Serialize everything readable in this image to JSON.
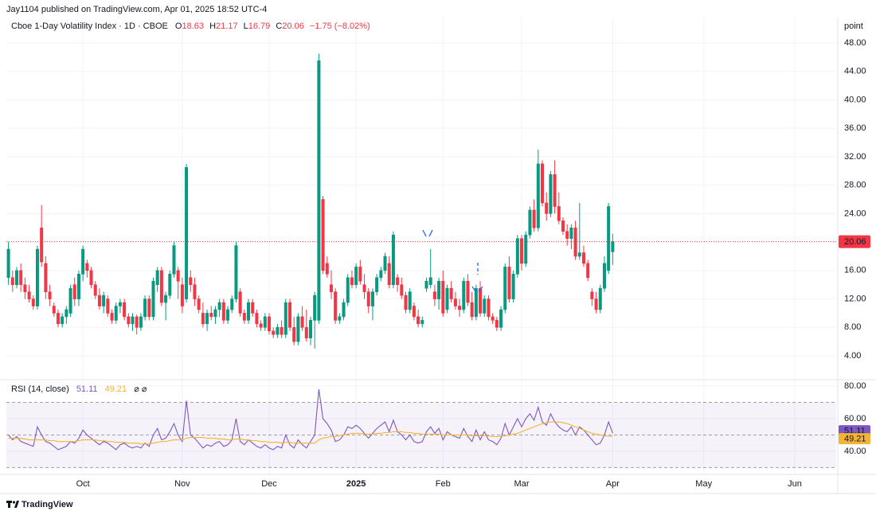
{
  "header": {
    "publisher": "Jay1104 published on TradingView.com, Apr 01, 2025 18:52 UTC-4",
    "footer": "TradingView"
  },
  "chart_data": [
    {
      "type": "candlestick",
      "title": "Cboe 1-Day Volatility Index · 1D · CBOE",
      "ohlc_labels": [
        "O",
        "H",
        "L",
        "C"
      ],
      "change": "−1.75 (−8.02%)",
      "header_color": "#f23645",
      "axis_unit": "point",
      "up_color": "#089981",
      "down_color": "#f23645",
      "grid": true,
      "last_price_line": true,
      "open": [
        15,
        15,
        14,
        16,
        14,
        13,
        12,
        11,
        22,
        17,
        13,
        11,
        10,
        8.5,
        9.5,
        10,
        14,
        12,
        15.5,
        17,
        16,
        14,
        12.5,
        11,
        12,
        10,
        9,
        11,
        11.5,
        9.5,
        8.5,
        9.5,
        8,
        9.5,
        12,
        9.5,
        14,
        16,
        11.5,
        12.5,
        15.5,
        16,
        14,
        12,
        15,
        14,
        12,
        10,
        8.5,
        10,
        9.5,
        10.5,
        11.5,
        9,
        10.5,
        12,
        13,
        10,
        9,
        11.5,
        10,
        8.5,
        8,
        9.5,
        7.5,
        7,
        8,
        7,
        11.5,
        8,
        6,
        9.5,
        8,
        6.5,
        9,
        9,
        26,
        17,
        14,
        13,
        9,
        9.5,
        11.5,
        15,
        14,
        16.5,
        14,
        13,
        11,
        13,
        15,
        16,
        17,
        14,
        15,
        14,
        12.5,
        10.5,
        11,
        9.5,
        8.5,
        13.5,
        14,
        13,
        12,
        14.5,
        10.5,
        13.5,
        12,
        11,
        10.5,
        14.5,
        11.5,
        9.5,
        13.5,
        10,
        12,
        9.5,
        9,
        8,
        10.5,
        16.5,
        12,
        15.5,
        20.5,
        17,
        21,
        24.5,
        22,
        31,
        25.5,
        24,
        29.5,
        25,
        23,
        21.5,
        20.5,
        22,
        18,
        18.5,
        17,
        13,
        12,
        10.5,
        13.5,
        16,
        18.63
      ],
      "high": [
        20,
        16,
        16.5,
        17,
        15,
        14,
        12.5,
        19.5,
        25.2,
        18,
        14,
        11.5,
        10.5,
        10,
        11,
        14,
        15,
        16,
        19.5,
        17.5,
        16.5,
        14.5,
        13.5,
        13,
        12.5,
        10.5,
        11.5,
        12,
        12,
        10,
        10,
        9.8,
        10,
        12.5,
        12.5,
        15,
        16.5,
        16.5,
        13,
        16,
        20,
        16.5,
        15,
        31,
        16,
        15,
        12.5,
        11.5,
        10.5,
        11,
        11,
        12,
        12,
        11,
        12.5,
        20,
        13.5,
        10.5,
        12,
        12,
        10.5,
        9,
        10,
        10,
        8,
        8.5,
        9,
        12,
        12,
        9.5,
        10,
        11,
        10.5,
        9.5,
        13,
        46.5,
        26.5,
        18,
        16,
        13.5,
        10,
        12,
        15.5,
        16,
        17,
        17.5,
        15.5,
        13.5,
        13.5,
        15.5,
        16.5,
        18.5,
        18,
        21.5,
        15.5,
        15,
        13,
        13.5,
        11.5,
        10.5,
        9.5,
        15,
        19,
        14,
        15,
        16,
        14,
        14.5,
        13,
        12,
        15,
        15.5,
        13,
        14,
        14.5,
        12.5,
        12.5,
        10,
        9.5,
        11,
        17,
        18,
        16,
        21,
        21,
        21.5,
        25,
        26,
        33,
        31.5,
        27,
        30,
        31.5,
        27,
        23.5,
        22.5,
        22.5,
        23,
        25.5,
        19.5,
        17.5,
        13.5,
        13,
        14,
        18,
        25.5,
        21.17
      ],
      "low": [
        14,
        13,
        13.5,
        13,
        12,
        11.5,
        10.5,
        10.5,
        16.5,
        12,
        11,
        9.5,
        8,
        8,
        8.5,
        9.5,
        11,
        11,
        14.5,
        15,
        13.5,
        12,
        10.5,
        10,
        9.5,
        8.5,
        8.5,
        10,
        9,
        8,
        7.5,
        7,
        7.5,
        9,
        9,
        9,
        13,
        11,
        9,
        12,
        15,
        12,
        10,
        11.5,
        13,
        11,
        10,
        8,
        7.5,
        9,
        8.5,
        9.5,
        8.5,
        8.5,
        10,
        11.5,
        9.5,
        8.5,
        8.5,
        9.5,
        8,
        7.5,
        7.5,
        7,
        6.5,
        6.5,
        6.5,
        6.5,
        7.5,
        5.5,
        5.5,
        7.5,
        6,
        5.5,
        5,
        8.5,
        15.5,
        15,
        12,
        8.5,
        8.5,
        9,
        11,
        13.5,
        13.5,
        14,
        12,
        10,
        9,
        12.5,
        14.5,
        15.5,
        13.5,
        13.5,
        13,
        12,
        10,
        10,
        9,
        8,
        8,
        13,
        13.5,
        11,
        10.5,
        9.5,
        10,
        11.5,
        10.5,
        9.5,
        10,
        11,
        9,
        9,
        9.5,
        9.5,
        9,
        8.5,
        7.5,
        7.5,
        10,
        11.5,
        11.5,
        15,
        16,
        16.5,
        20.5,
        21.5,
        21.5,
        25,
        23,
        23.5,
        24,
        22.5,
        21,
        19.5,
        19,
        17.5,
        17.5,
        16.5,
        14.5,
        11,
        10,
        10,
        13,
        15.5,
        16.79
      ],
      "close": [
        19,
        14,
        16,
        14,
        13,
        12,
        11,
        19,
        17.2,
        13,
        12,
        10,
        8.5,
        9.5,
        10.5,
        13.5,
        12,
        15.5,
        19,
        16,
        14,
        12.5,
        11,
        12.5,
        10,
        9,
        11,
        11.5,
        9.5,
        8.5,
        9.5,
        8,
        9.5,
        12,
        9.5,
        14.5,
        16,
        11.5,
        12.5,
        15.5,
        19.5,
        14.5,
        11,
        30.5,
        14,
        12,
        10.5,
        8.5,
        10,
        9.5,
        10.5,
        11.5,
        9,
        10.5,
        12,
        19.5,
        10,
        9,
        11.5,
        10,
        8.5,
        8,
        9.5,
        7.5,
        7,
        8,
        7,
        11.5,
        8,
        6,
        9.5,
        8,
        6.5,
        9,
        12.5,
        45.5,
        16,
        15.5,
        13,
        9,
        9.5,
        11.5,
        15,
        14,
        16.5,
        14.5,
        13,
        11,
        13,
        15,
        16,
        18,
        14,
        21,
        14,
        12.5,
        10.5,
        13,
        9.5,
        8.5,
        9,
        14.5,
        15,
        12,
        14.5,
        10,
        13.5,
        12,
        11,
        10.5,
        14.5,
        11.5,
        9.5,
        13.5,
        10,
        12,
        9.5,
        9,
        8,
        10.5,
        16.5,
        12,
        15.5,
        20.5,
        17,
        21,
        24.5,
        22,
        31,
        25.5,
        24,
        29.5,
        25,
        23,
        21.5,
        20.5,
        22,
        18,
        18.5,
        17,
        15,
        12,
        10.5,
        13.5,
        17,
        25,
        20.06
      ],
      "ylim": [
        0.87,
        51.58
      ],
      "yticks": [
        {
          "value": 4,
          "label": "4.00"
        },
        {
          "value": 8,
          "label": "8.00"
        },
        {
          "value": 12,
          "label": "12.00"
        },
        {
          "value": 16,
          "label": "16.00"
        },
        {
          "value": 20,
          "label": "20.00"
        },
        {
          "value": 24,
          "label": "24.00"
        },
        {
          "value": 28,
          "label": "28.00"
        },
        {
          "value": 32,
          "label": "32.00"
        },
        {
          "value": 36,
          "label": "36.00"
        },
        {
          "value": 40,
          "label": "40.00"
        },
        {
          "value": 44,
          "label": "44.00"
        },
        {
          "value": 48,
          "label": "48.00"
        }
      ],
      "xlim": [
        -0.5,
        200
      ],
      "xticks": [
        {
          "value": 18,
          "label": "Oct"
        },
        {
          "value": 42,
          "label": "Nov"
        },
        {
          "value": 63,
          "label": "Dec"
        },
        {
          "value": 84,
          "label": "2025"
        },
        {
          "value": 105,
          "label": "Feb"
        },
        {
          "value": 124,
          "label": "Mar"
        },
        {
          "value": 146,
          "label": "Apr"
        },
        {
          "value": 168,
          "label": "May"
        },
        {
          "value": 190,
          "label": "Jun"
        }
      ]
    },
    {
      "type": "line",
      "title": "RSI (14, close)",
      "series": [
        {
          "color": "#7e57c2",
          "values": [
            50,
            47,
            49,
            46,
            45,
            44,
            43,
            55,
            50,
            46,
            45,
            43,
            41,
            42,
            43,
            46,
            45,
            48,
            53,
            50,
            48,
            46,
            44,
            46,
            45,
            43,
            41,
            44,
            45,
            43,
            42,
            43,
            42,
            45,
            43,
            50,
            54,
            47,
            48,
            52,
            57,
            50,
            46,
            71,
            50,
            48,
            45,
            42,
            44,
            43,
            45,
            46,
            43,
            44,
            47,
            60,
            46,
            44,
            47,
            45,
            43,
            42,
            44,
            42,
            41,
            43,
            42,
            50,
            44,
            42,
            47,
            44,
            42,
            46,
            50,
            78,
            60,
            57,
            53,
            46,
            47,
            50,
            55,
            54,
            56,
            54,
            51,
            48,
            51,
            54,
            56,
            58,
            52,
            59,
            52,
            50,
            47,
            50,
            46,
            45,
            46,
            52,
            55,
            51,
            54,
            47,
            52,
            50,
            49,
            48,
            54,
            49,
            46,
            53,
            47,
            52,
            47,
            46,
            44,
            48,
            57,
            50,
            55,
            60,
            55,
            60,
            63,
            59,
            67,
            58,
            56,
            63,
            58,
            55,
            53,
            52,
            55,
            50,
            55,
            53,
            50,
            47,
            44,
            45,
            50,
            58,
            51.11
          ]
        },
        {
          "color": "#f5b335",
          "values": [
            48,
            48,
            48,
            48,
            47.5,
            47,
            47,
            47,
            47,
            47,
            46.5,
            46.5,
            46,
            46,
            46,
            46,
            46,
            46.5,
            47,
            47,
            47,
            47,
            46.5,
            46.5,
            46,
            46,
            45.5,
            45.5,
            45.5,
            45,
            45,
            45,
            44.5,
            44.5,
            44.5,
            45,
            45.5,
            46,
            46,
            46.5,
            47,
            47,
            47,
            48,
            48.5,
            48.5,
            48.5,
            48.5,
            48,
            48,
            48,
            47.5,
            47.5,
            47,
            47,
            47.5,
            47.5,
            47,
            47,
            46.5,
            46.5,
            46,
            46,
            45.5,
            45.5,
            45.5,
            45,
            45.5,
            45.5,
            45,
            45,
            45,
            45,
            45,
            45,
            47,
            48,
            48.5,
            49,
            49,
            49.5,
            50,
            50.5,
            51,
            51,
            51,
            50.5,
            50.5,
            50.5,
            51,
            51,
            51.5,
            51.5,
            52,
            52,
            52,
            51.5,
            51.5,
            51,
            51,
            50.5,
            50.5,
            50.5,
            50.5,
            50.5,
            50,
            50,
            50,
            50,
            50,
            50,
            50,
            49.5,
            49.5,
            49.5,
            49.5,
            49.5,
            49,
            49,
            49,
            49.5,
            50,
            50.5,
            51,
            52,
            53,
            54,
            55,
            56,
            57,
            57.5,
            58,
            58,
            58,
            57.5,
            57,
            56,
            55,
            54,
            53,
            52,
            51,
            50.5,
            50,
            49.5,
            49.3,
            49.21
          ]
        }
      ],
      "levels": [
        30,
        50,
        70
      ],
      "band_color": "#7e57c2",
      "ylim": [
        26.3,
        83.9
      ],
      "yticks": [
        {
          "value": 40,
          "label": "40.00"
        },
        {
          "value": 60,
          "label": "60.00"
        },
        {
          "value": 80,
          "label": "80.00"
        }
      ]
    }
  ]
}
